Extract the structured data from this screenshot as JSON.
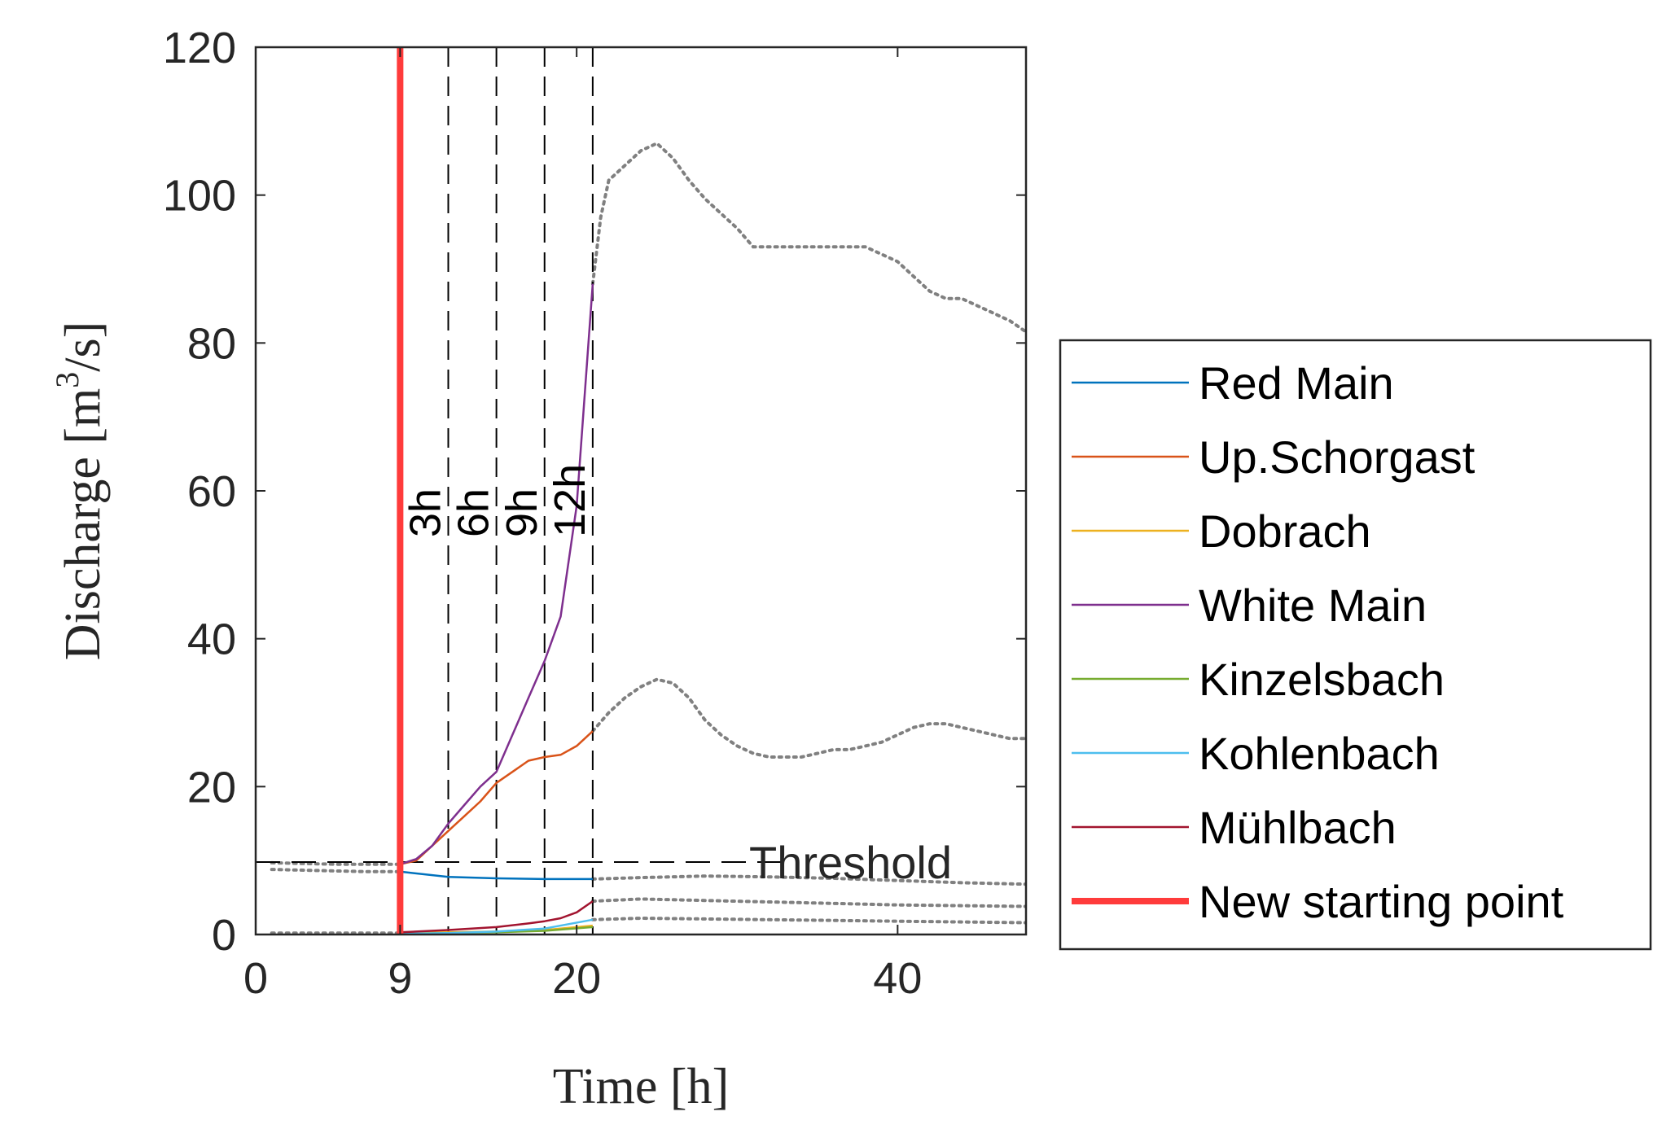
{
  "chart_data": {
    "type": "line",
    "xlabel": "Time [h]",
    "ylabel_main": "Discharge [m",
    "ylabel_sup": "3",
    "ylabel_tail": "/s]",
    "xlim": [
      0,
      48
    ],
    "ylim": [
      0,
      120
    ],
    "xticks": [
      0,
      9,
      20,
      40
    ],
    "xtick_labels": [
      "0",
      "9",
      "20",
      "40"
    ],
    "yticks": [
      0,
      20,
      40,
      60,
      80,
      100,
      120
    ],
    "ytick_labels": [
      "0",
      "20",
      "40",
      "60",
      "80",
      "100",
      "120"
    ],
    "grid": false,
    "legend_position": "outside-right",
    "series": [
      {
        "name": "Red Main",
        "color": "#0072BD",
        "width": 2.5,
        "x": [
          9,
          12,
          15,
          18,
          21
        ],
        "y": [
          8.5,
          7.8,
          7.6,
          7.5,
          7.5
        ]
      },
      {
        "name": "Up.Schorgast",
        "color": "#D95319",
        "width": 2.5,
        "x": [
          9,
          10,
          11,
          12,
          13,
          14,
          15,
          16,
          17,
          18,
          19,
          20,
          21
        ],
        "y": [
          9.5,
          10,
          12,
          14,
          16,
          18,
          20.5,
          22,
          23.5,
          24,
          24.3,
          25.5,
          27.5
        ]
      },
      {
        "name": "Dobrach",
        "color": "#EDB120",
        "width": 2.5,
        "x": [
          9,
          12,
          15,
          18,
          21
        ],
        "y": [
          0.2,
          0.3,
          0.4,
          0.6,
          1.2
        ]
      },
      {
        "name": "White Main",
        "color": "#7E2F8E",
        "width": 2.5,
        "x": [
          9,
          10,
          11,
          12,
          13,
          14,
          15,
          16,
          17,
          18,
          19,
          20,
          21
        ],
        "y": [
          9.5,
          10.2,
          12,
          15,
          17.5,
          20,
          22,
          27,
          32,
          37,
          43,
          58,
          88
        ]
      },
      {
        "name": "Kinzelsbach",
        "color": "#77AC30",
        "width": 2.5,
        "x": [
          9,
          12,
          15,
          18,
          21
        ],
        "y": [
          0.1,
          0.2,
          0.3,
          0.5,
          1.0
        ]
      },
      {
        "name": "Kohlenbach",
        "color": "#4DBEEE",
        "width": 2.5,
        "x": [
          9,
          12,
          15,
          18,
          21
        ],
        "y": [
          0.1,
          0.2,
          0.4,
          0.8,
          2.0
        ]
      },
      {
        "name": "Mühlbach",
        "color": "#A2142F",
        "width": 2.5,
        "x": [
          9,
          12,
          15,
          17,
          18,
          19,
          20,
          21
        ],
        "y": [
          0.3,
          0.6,
          1.0,
          1.5,
          1.8,
          2.2,
          3.0,
          4.5
        ]
      }
    ],
    "dotted_series": [
      {
        "name": "Up.Schorgast forecast",
        "x": [
          21,
          22,
          23,
          24,
          25,
          26,
          27,
          28,
          29,
          30,
          31,
          32,
          33,
          34,
          35,
          36,
          37,
          38,
          39,
          40,
          41,
          42,
          43,
          44,
          45,
          46,
          47,
          48
        ],
        "y": [
          27.5,
          30,
          32,
          33.5,
          34.5,
          34,
          32,
          29,
          27,
          25.5,
          24.5,
          24,
          24,
          24,
          24.5,
          25,
          25,
          25.5,
          26,
          27,
          28,
          28.5,
          28.5,
          28,
          27.5,
          27,
          26.5,
          26.5
        ]
      },
      {
        "name": "White Main forecast",
        "x": [
          21,
          21.5,
          22,
          23,
          24,
          25,
          26,
          27,
          28,
          29,
          30,
          31,
          32,
          33,
          34,
          35,
          36,
          37,
          38,
          39,
          40,
          41,
          42,
          43,
          44,
          45,
          46,
          47,
          48
        ],
        "y": [
          88,
          97,
          102,
          104,
          106,
          107,
          105,
          102,
          99.5,
          97.5,
          95.5,
          93,
          93,
          93,
          93,
          93,
          93,
          93,
          93,
          92,
          91,
          89,
          87,
          86,
          86,
          85,
          84,
          83,
          81.5
        ]
      },
      {
        "name": "Red Main forecast",
        "x": [
          21,
          24,
          28,
          32,
          36,
          40,
          44,
          48
        ],
        "y": [
          7.5,
          7.7,
          7.9,
          7.8,
          7.6,
          7.3,
          7.0,
          6.8
        ]
      },
      {
        "name": "Mühlbach forecast",
        "x": [
          21,
          24,
          28,
          32,
          36,
          40,
          44,
          48
        ],
        "y": [
          4.5,
          4.8,
          4.6,
          4.4,
          4.2,
          4.0,
          3.9,
          3.8
        ]
      },
      {
        "name": "Kohlenbach forecast",
        "x": [
          21,
          24,
          28,
          32,
          36,
          40,
          44,
          48
        ],
        "y": [
          2.0,
          2.2,
          2.1,
          2.0,
          1.9,
          1.8,
          1.7,
          1.6
        ]
      },
      {
        "name": "pre-start upper band",
        "x": [
          1,
          3,
          5,
          7,
          9
        ],
        "y": [
          9.7,
          9.6,
          9.5,
          9.5,
          9.5
        ]
      },
      {
        "name": "pre-start lower band",
        "x": [
          1,
          3,
          5,
          7,
          9
        ],
        "y": [
          8.8,
          8.7,
          8.6,
          8.5,
          8.5
        ]
      },
      {
        "name": "pre-start base",
        "x": [
          1,
          3,
          5,
          7,
          9
        ],
        "y": [
          0.2,
          0.2,
          0.2,
          0.2,
          0.2
        ]
      }
    ],
    "threshold": {
      "label": "Threshold",
      "value": 9.8,
      "color": "#000000"
    },
    "new_start": {
      "label": "New starting point",
      "x": 9,
      "color": "#FF3B3B"
    },
    "horizon_markers": [
      {
        "label": "3h",
        "x": 12
      },
      {
        "label": "6h",
        "x": 15
      },
      {
        "label": "9h",
        "x": 18
      },
      {
        "label": "12h",
        "x": 21
      }
    ],
    "dotted_color": "#808080"
  }
}
